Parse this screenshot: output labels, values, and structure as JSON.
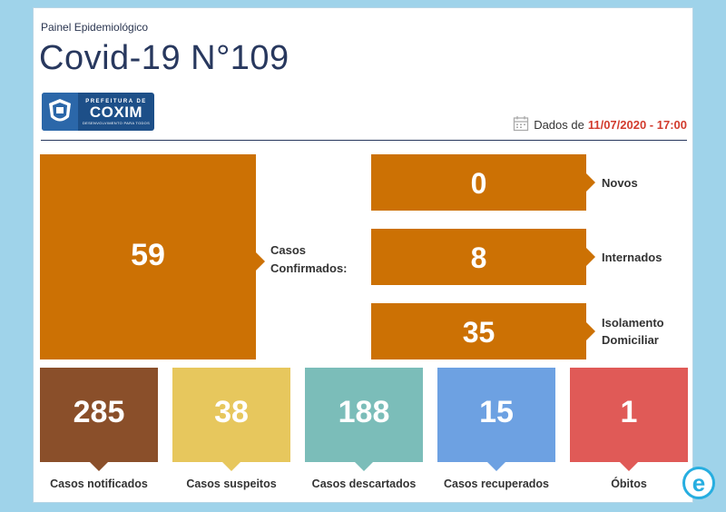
{
  "header": {
    "subtitle": "Painel Epidemiológico",
    "title": "Covid-19 N°109",
    "logo": {
      "icon": "city-seal-icon",
      "top": "PREFEITURA DE",
      "name": "COXIM",
      "slogan": "DESENVOLVIMENTO PARA TODOS"
    },
    "date_label": "Dados de",
    "date_value": "11/07/2020 - 17:00",
    "calendar_icon": "calendar-icon"
  },
  "colors": {
    "primary": "#cc7104",
    "notificados": "#8a4f2a",
    "suspeitos": "#e7c75d",
    "descartados": "#7bbdb9",
    "recuperados": "#6da1e2",
    "obitos": "#e05a57",
    "date": "#d23c2e"
  },
  "confirmados": {
    "value": "59",
    "label_line1": "Casos",
    "label_line2": "Confirmados:"
  },
  "breakdown": [
    {
      "value": "0",
      "label_line1": "Novos",
      "label_line2": ""
    },
    {
      "value": "8",
      "label_line1": "Internados",
      "label_line2": ""
    },
    {
      "value": "35",
      "label_line1": "Isolamento",
      "label_line2": "Domiciliar"
    }
  ],
  "tiles": [
    {
      "value": "285",
      "label": "Casos notificados"
    },
    {
      "value": "38",
      "label": "Casos suspeitos"
    },
    {
      "value": "188",
      "label": "Casos descartados"
    },
    {
      "value": "15",
      "label": "Casos recuperados"
    },
    {
      "value": "1",
      "label": "Óbitos"
    }
  ],
  "watermark": {
    "letter": "e"
  }
}
